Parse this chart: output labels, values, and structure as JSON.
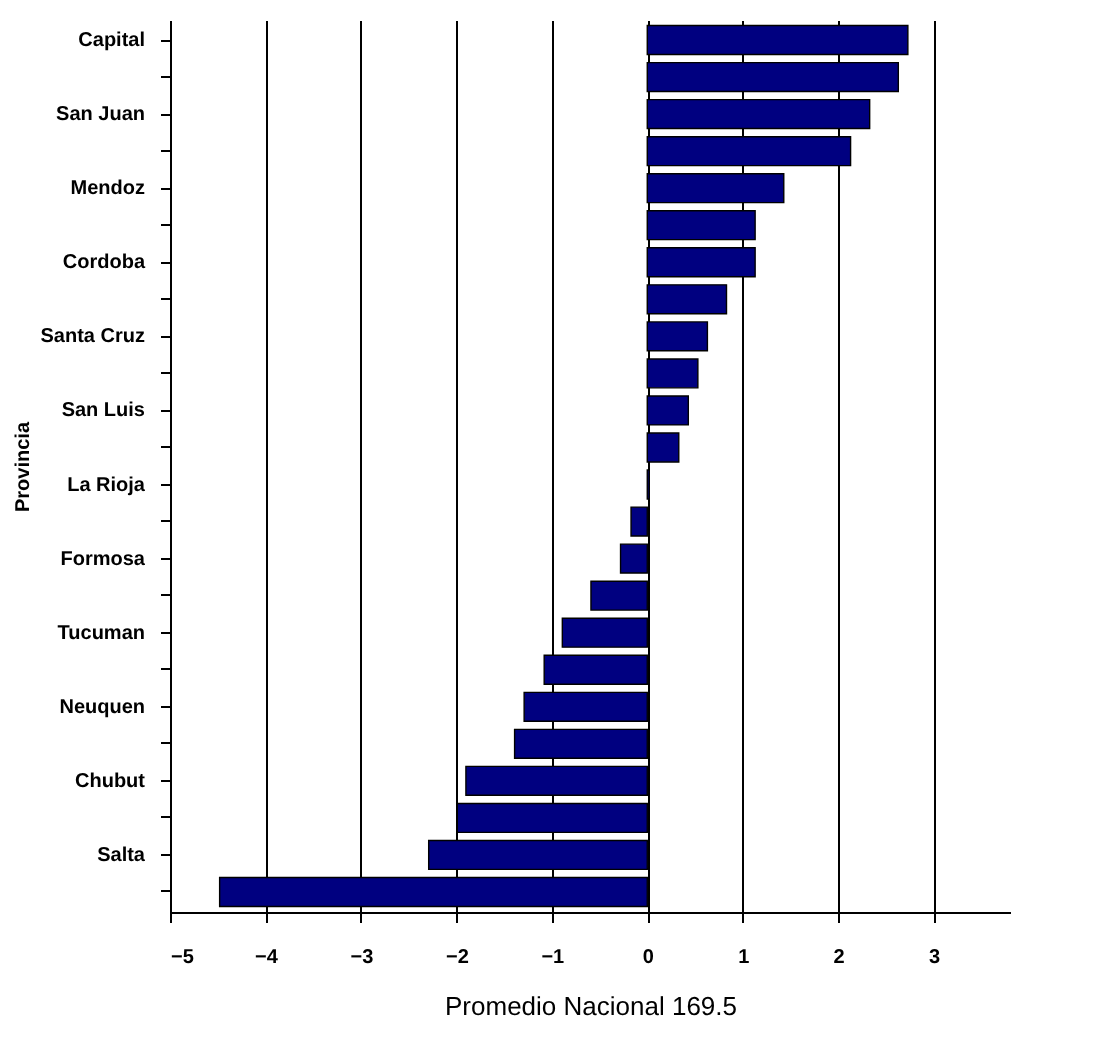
{
  "chart_data": {
    "type": "bar",
    "orientation": "horizontal",
    "xlabel": "Promedio Nacional 169.5",
    "ylabel": "Provincia",
    "categories": [
      "Capital",
      null,
      "San Juan",
      null,
      "Mendoz",
      null,
      "Cordoba",
      null,
      "Santa Cruz",
      null,
      "San Luis",
      null,
      "La Rioja",
      null,
      "Formosa",
      null,
      "Tucuman",
      null,
      "Neuquen",
      null,
      "Chubut",
      null,
      "Salta",
      null
    ],
    "values": [
      2.73,
      2.63,
      2.33,
      2.13,
      1.43,
      1.13,
      1.13,
      0.83,
      0.63,
      0.53,
      0.43,
      0.33,
      0.02,
      -0.17,
      -0.28,
      -0.59,
      -0.89,
      -1.08,
      -1.29,
      -1.39,
      -1.9,
      -1.99,
      -2.29,
      -4.48
    ],
    "color": "#000080",
    "xlim": [
      -5,
      3.8
    ],
    "xticks": [
      -5,
      -4,
      -3,
      -2,
      -1,
      0,
      1,
      2,
      3
    ],
    "grid": "x"
  }
}
